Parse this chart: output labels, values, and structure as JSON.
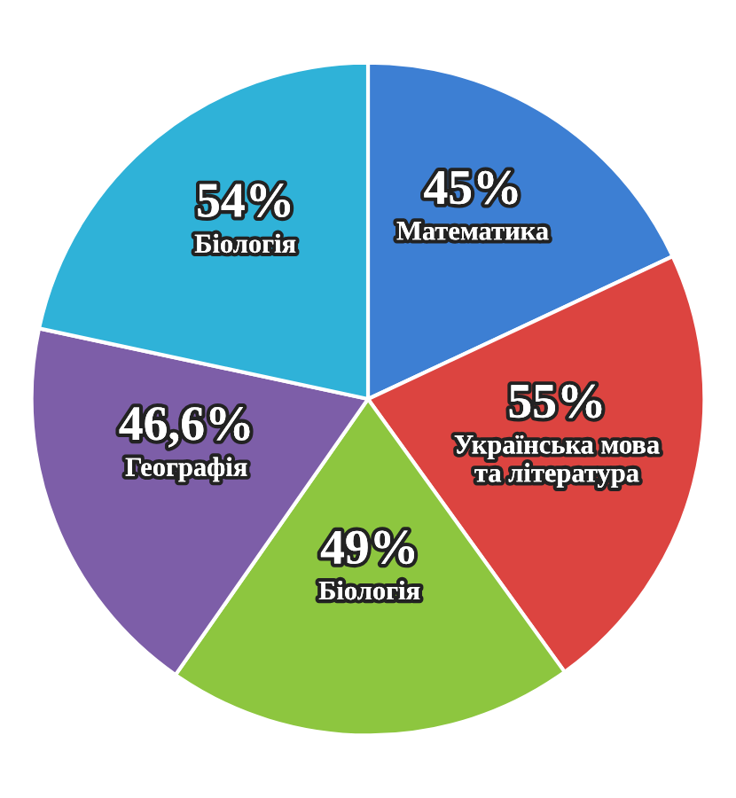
{
  "chart_data": {
    "type": "pie",
    "categories": [
      "Математика",
      "Українська мова\nта література",
      "Біологія",
      "Географія",
      "Біологія"
    ],
    "values": [
      45,
      55,
      49,
      46.6,
      54
    ],
    "value_labels": [
      "45%",
      "55%",
      "49%",
      "46,6%",
      "54%"
    ],
    "colors": [
      "#3d7fd3",
      "#dc4440",
      "#8dc63f",
      "#7d5ea8",
      "#2fb2d8"
    ],
    "legend": false
  }
}
